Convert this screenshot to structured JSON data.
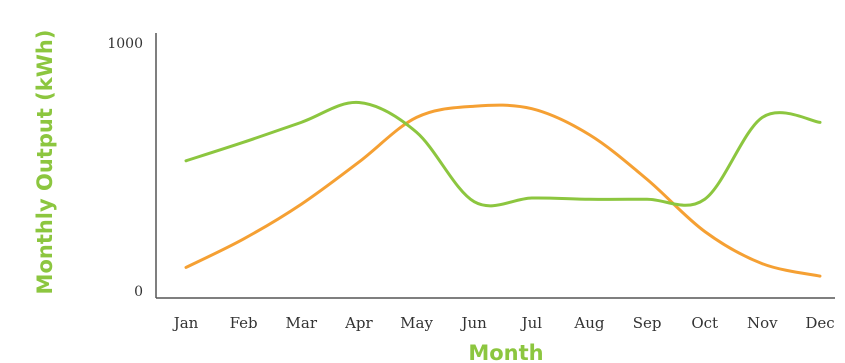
{
  "chart_data": {
    "type": "line",
    "xlabel": "Month",
    "ylabel": "Monthly Output (kWh)",
    "ylim": [
      0,
      1000
    ],
    "y_ticks": [
      0,
      1000
    ],
    "categories": [
      "Jan",
      "Feb",
      "Mar",
      "Apr",
      "May",
      "Jun",
      "Jul",
      "Aug",
      "Sep",
      "Oct",
      "Nov",
      "Dec"
    ],
    "grid": false,
    "legend": "none",
    "series": [
      {
        "color": "#f5a033",
        "values": [
          95,
          210,
          350,
          520,
          700,
          745,
          735,
          630,
          450,
          240,
          110,
          60
        ]
      },
      {
        "color": "#8cc63f",
        "values": [
          525,
          600,
          680,
          760,
          640,
          360,
          375,
          370,
          370,
          370,
          700,
          680
        ]
      }
    ],
    "axis_title_color": "#8cc63f",
    "axis_line_color": "#555555"
  }
}
